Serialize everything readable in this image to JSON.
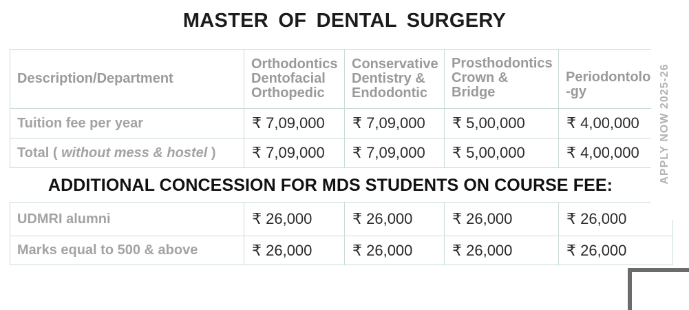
{
  "title": "MASTER OF DENTAL SURGERY",
  "header": {
    "description": "Description/Department",
    "departments": [
      [
        "Orthodontics",
        "Dentofacial",
        "Orthopedic"
      ],
      [
        "Conservative",
        "Dentistry &",
        "Endodontic"
      ],
      [
        "Prosthodontics",
        "Crown &",
        "Bridge"
      ],
      [
        "Periodontolo",
        "-gy"
      ]
    ]
  },
  "fee_rows": [
    {
      "label": "Tuition fee per year",
      "values": [
        "₹ 7,09,000",
        "₹ 7,09,000",
        "₹ 5,00,000",
        "₹ 4,00,000"
      ]
    },
    {
      "label_prefix": "Total ( ",
      "label_italic": "without mess & hostel",
      "label_suffix": " )",
      "values": [
        "₹ 7,09,000",
        "₹ 7,09,000",
        "₹ 5,00,000",
        "₹ 4,00,000"
      ]
    }
  ],
  "concession_heading": "ADDITIONAL CONCESSION FOR MDS STUDENTS ON COURSE FEE:",
  "concession_rows": [
    {
      "label": "UDMRI alumni",
      "values": [
        "₹ 26,000",
        "₹ 26,000",
        "₹ 26,000",
        "₹ 26,000"
      ]
    },
    {
      "label": "Marks equal to 500 & above",
      "values": [
        "₹ 26,000",
        "₹ 26,000",
        "₹ 26,000",
        "₹ 26,000"
      ]
    }
  ],
  "side_text": "APPLY NOW 2025-26"
}
